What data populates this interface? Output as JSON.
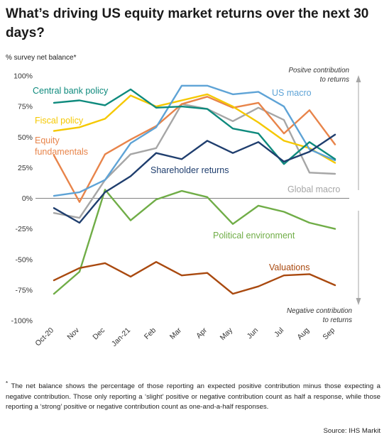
{
  "header": {
    "title": "What’s driving US equity market returns over the next 30 days?",
    "y_unit_label": "% survey net balance*"
  },
  "footnote": {
    "marker": "*",
    "text": "The net balance shows the percentage of those reporting an expected positive contribution minus those expecting a negative contribution. Those only reporting a ‘slight’ positive or negative contribution count as half a response, while those reporting a ‘strong’ positive or negative contribution count as one-and-a-half responses."
  },
  "source": "Source: IHS Markit",
  "chart_data": {
    "type": "line",
    "title": "What’s driving US equity market returns over the next 30 days?",
    "ylabel": "% survey net balance*",
    "xlabel": "",
    "categories": [
      "Oct-20",
      "Nov",
      "Dec",
      "Jan-21",
      "Feb",
      "Mar",
      "Apr",
      "May",
      "Jun",
      "Jul",
      "Aug",
      "Sep"
    ],
    "ylim": [
      -100,
      100
    ],
    "yticks": [
      100,
      75,
      50,
      25,
      0,
      -25,
      -50,
      -75,
      -100
    ],
    "ytick_labels": [
      "100%",
      "75%",
      "50%",
      "25%",
      "0%",
      "-25%",
      "-50%",
      "-75%",
      "-100%"
    ],
    "grid": false,
    "zero_line": true,
    "annotations": {
      "positive": "Positve contribution to returns",
      "negative": "Negative contribution to returns"
    },
    "series": [
      {
        "name": "Central bank policy",
        "color": "#0e8a7d",
        "values": [
          78,
          80,
          76,
          89,
          74,
          75,
          73,
          57,
          53,
          28,
          46,
          32
        ]
      },
      {
        "name": "US macro",
        "color": "#5ea3d6",
        "values": [
          2,
          5,
          15,
          45,
          58,
          92,
          92,
          85,
          87,
          75,
          40,
          31
        ]
      },
      {
        "name": "Fiscal policy",
        "color": "#f5c800",
        "values": [
          55,
          58,
          65,
          84,
          75,
          80,
          85,
          75,
          62,
          47,
          41,
          29
        ]
      },
      {
        "name": "Equity fundamentals",
        "color": "#e8844a",
        "values": [
          35,
          -3,
          36,
          48,
          59,
          77,
          83,
          74,
          78,
          53,
          72,
          44
        ]
      },
      {
        "name": "Global macro",
        "color": "#a6a6a6",
        "values": [
          -12,
          -16,
          15,
          36,
          41,
          77,
          73,
          63,
          74,
          64,
          21,
          20
        ]
      },
      {
        "name": "Shareholder returns",
        "color": "#1f3e6e",
        "values": [
          -8,
          -20,
          5,
          18,
          37,
          32,
          47,
          37,
          46,
          30,
          38,
          52
        ]
      },
      {
        "name": "Political environment",
        "color": "#70ad47",
        "values": [
          -78,
          -60,
          7,
          -18,
          -1,
          6,
          1,
          -21,
          -6,
          -11,
          -20,
          -25
        ]
      },
      {
        "name": "Valuations",
        "color": "#a9490f",
        "values": [
          -67,
          -57,
          -53,
          -64,
          -52,
          -63,
          -61,
          -78,
          -72,
          -63,
          -62,
          -71
        ]
      }
    ]
  }
}
